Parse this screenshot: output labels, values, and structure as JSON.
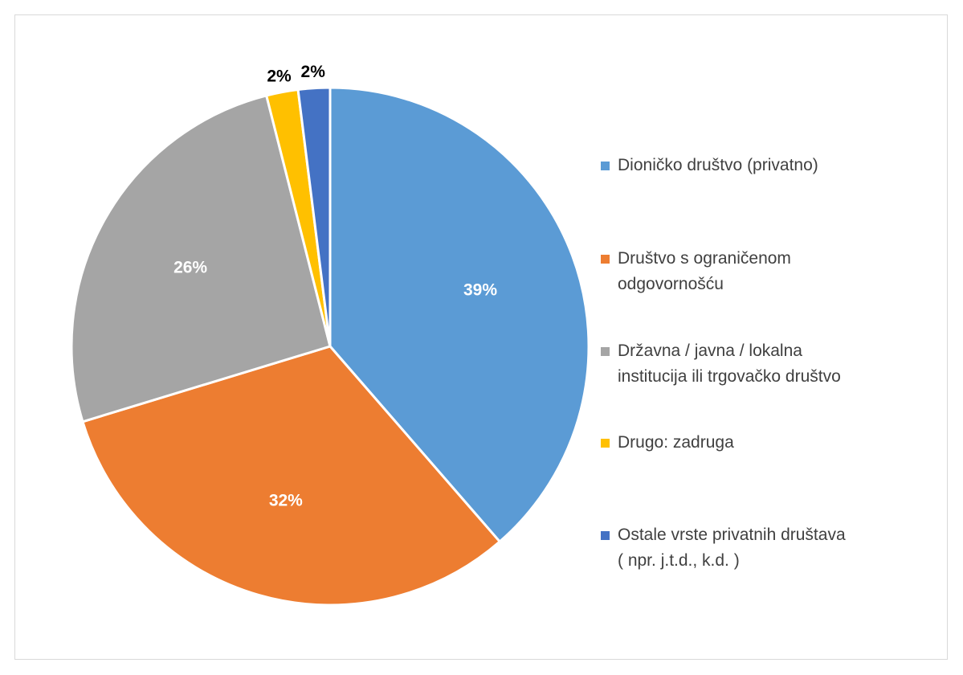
{
  "chart_data": {
    "type": "pie",
    "categories": [
      "Dioničko društvo (privatno)",
      "Društvo s ograničenom odgovornošću",
      "Državna / javna / lokalna institucija ili trgovačko društvo",
      "Drugo: zadruga",
      "Ostale vrste privatnih društava ( npr. j.t.d., k.d. )"
    ],
    "legend_labels": [
      "Dioničko društvo (privatno)",
      "Društvo s ograničenom\nodgovornošću",
      "Državna / javna / lokalna\ninstitucija ili trgovačko društvo",
      "Drugo: zadruga",
      "Ostale vrste privatnih društava\n( npr. j.t.d., k.d. )"
    ],
    "values": [
      39,
      32,
      26,
      2,
      2
    ],
    "data_labels": [
      "39%",
      "32%",
      "26%",
      "2%",
      "2%"
    ],
    "colors": [
      "#5b9bd5",
      "#ed7d31",
      "#a5a5a5",
      "#ffc000",
      "#4472c4"
    ],
    "label_colors": [
      "#ffffff",
      "#ffffff",
      "#ffffff",
      "#000000",
      "#000000"
    ],
    "legend_position": "right",
    "start_angle": "top, clockwise"
  }
}
